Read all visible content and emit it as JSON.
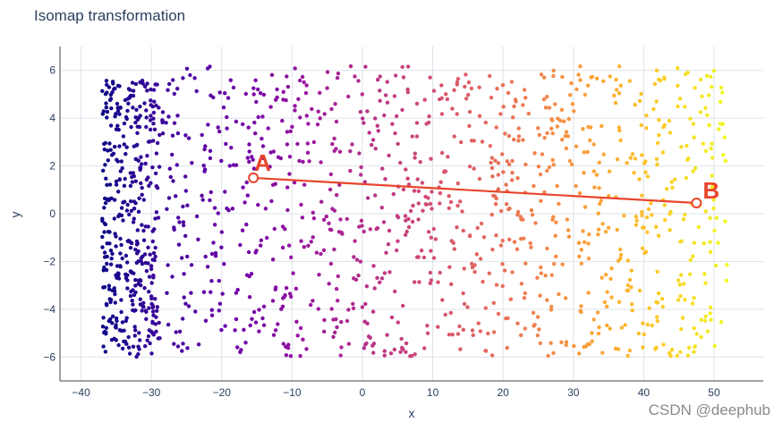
{
  "chart_data": {
    "type": "scatter",
    "title": "Isomap transformation",
    "xlabel": "x",
    "ylabel": "y",
    "xlim": [
      -43,
      57
    ],
    "ylim": [
      -7,
      7
    ],
    "xticks": [
      -40,
      -30,
      -20,
      -10,
      0,
      10,
      20,
      30,
      40,
      50
    ],
    "yticks": [
      -6,
      -4,
      -2,
      0,
      2,
      4,
      6
    ],
    "grid": true,
    "legend": "none",
    "colorscale": [
      "#0d0887",
      "#46039f",
      "#7201a8",
      "#9c179e",
      "#bd3786",
      "#d8576b",
      "#ed7953",
      "#fb9f3a",
      "#fdca26",
      "#f0f921"
    ],
    "point_cloud": {
      "x_range": [
        -37,
        52
      ],
      "y_range": [
        -6,
        6.2
      ],
      "approx_count": 1500,
      "color_by": "x"
    },
    "annotations": [
      {
        "label": "A",
        "x": -15.5,
        "y": 1.5
      },
      {
        "label": "B",
        "x": 47.5,
        "y": 0.45
      }
    ],
    "line": {
      "from": "A",
      "to": "B",
      "color": "#e8452c"
    }
  },
  "watermark": "CSDN @deephub"
}
